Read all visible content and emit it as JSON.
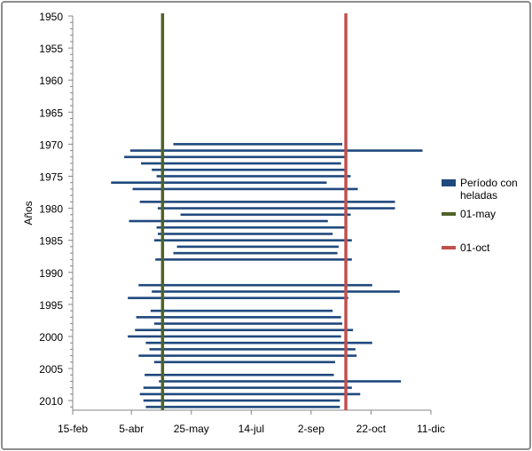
{
  "chart_data": {
    "type": "bar",
    "orientation": "horizontal",
    "ylabel": "Años",
    "xlabel": "",
    "x_ticks": [
      "15-feb",
      "5-abr",
      "25-may",
      "14-jul",
      "2-sep",
      "22-oct",
      "11-dic"
    ],
    "x_tick_days": [
      46,
      95,
      145,
      195,
      245,
      295,
      345
    ],
    "xlim": [
      46,
      345
    ],
    "y_ticks": [
      1950,
      1955,
      1960,
      1965,
      1970,
      1975,
      1980,
      1985,
      1990,
      1995,
      2000,
      2005,
      2010
    ],
    "ylim": [
      1950,
      2011.5
    ],
    "y_reversed": true,
    "grid": false,
    "legend_position": "right",
    "series": [
      {
        "name": "Período con heladas",
        "color": "#1f497d",
        "note": "start/end as day-of-year",
        "bars": [
          {
            "year": 1970,
            "start": 130,
            "end": 271
          },
          {
            "year": 1971,
            "start": 94,
            "end": 338
          },
          {
            "year": 1972,
            "start": 89,
            "end": 274
          },
          {
            "year": 1973,
            "start": 103,
            "end": 270
          },
          {
            "year": 1974,
            "start": 112,
            "end": 275
          },
          {
            "year": 1975,
            "start": 116,
            "end": 278
          },
          {
            "year": 1976,
            "start": 78,
            "end": 258
          },
          {
            "year": 1977,
            "start": 96,
            "end": 284
          },
          {
            "year": 1979,
            "start": 102,
            "end": 315
          },
          {
            "year": 1980,
            "start": 117,
            "end": 315
          },
          {
            "year": 1981,
            "start": 136,
            "end": 278
          },
          {
            "year": 1982,
            "start": 93,
            "end": 259
          },
          {
            "year": 1983,
            "start": 116,
            "end": 273
          },
          {
            "year": 1984,
            "start": 117,
            "end": 263
          },
          {
            "year": 1985,
            "start": 114,
            "end": 279
          },
          {
            "year": 1986,
            "start": 133,
            "end": 268
          },
          {
            "year": 1987,
            "start": 130,
            "end": 267
          },
          {
            "year": 1988,
            "start": 115,
            "end": 279
          },
          {
            "year": 1992,
            "start": 101,
            "end": 296
          },
          {
            "year": 1993,
            "start": 112,
            "end": 319
          },
          {
            "year": 1994,
            "start": 92,
            "end": 276
          },
          {
            "year": 1996,
            "start": 111,
            "end": 263
          },
          {
            "year": 1997,
            "start": 99,
            "end": 270
          },
          {
            "year": 1998,
            "start": 114,
            "end": 271
          },
          {
            "year": 1999,
            "start": 98,
            "end": 280
          },
          {
            "year": 2000,
            "start": 92,
            "end": 270
          },
          {
            "year": 2001,
            "start": 107,
            "end": 296
          },
          {
            "year": 2002,
            "start": 110,
            "end": 282
          },
          {
            "year": 2003,
            "start": 101,
            "end": 283
          },
          {
            "year": 2004,
            "start": 114,
            "end": 265
          },
          {
            "year": 2006,
            "start": 106,
            "end": 264
          },
          {
            "year": 2007,
            "start": 118,
            "end": 320
          },
          {
            "year": 2008,
            "start": 105,
            "end": 279
          },
          {
            "year": 2009,
            "start": 102,
            "end": 286
          },
          {
            "year": 2010,
            "start": 105,
            "end": 269
          },
          {
            "year": 2011,
            "start": 107,
            "end": 269
          }
        ]
      },
      {
        "name": "01-may",
        "type": "vline",
        "day": 121,
        "color": "#4f6228"
      },
      {
        "name": "01-oct",
        "type": "vline",
        "day": 274,
        "color": "#c0504d"
      }
    ]
  }
}
